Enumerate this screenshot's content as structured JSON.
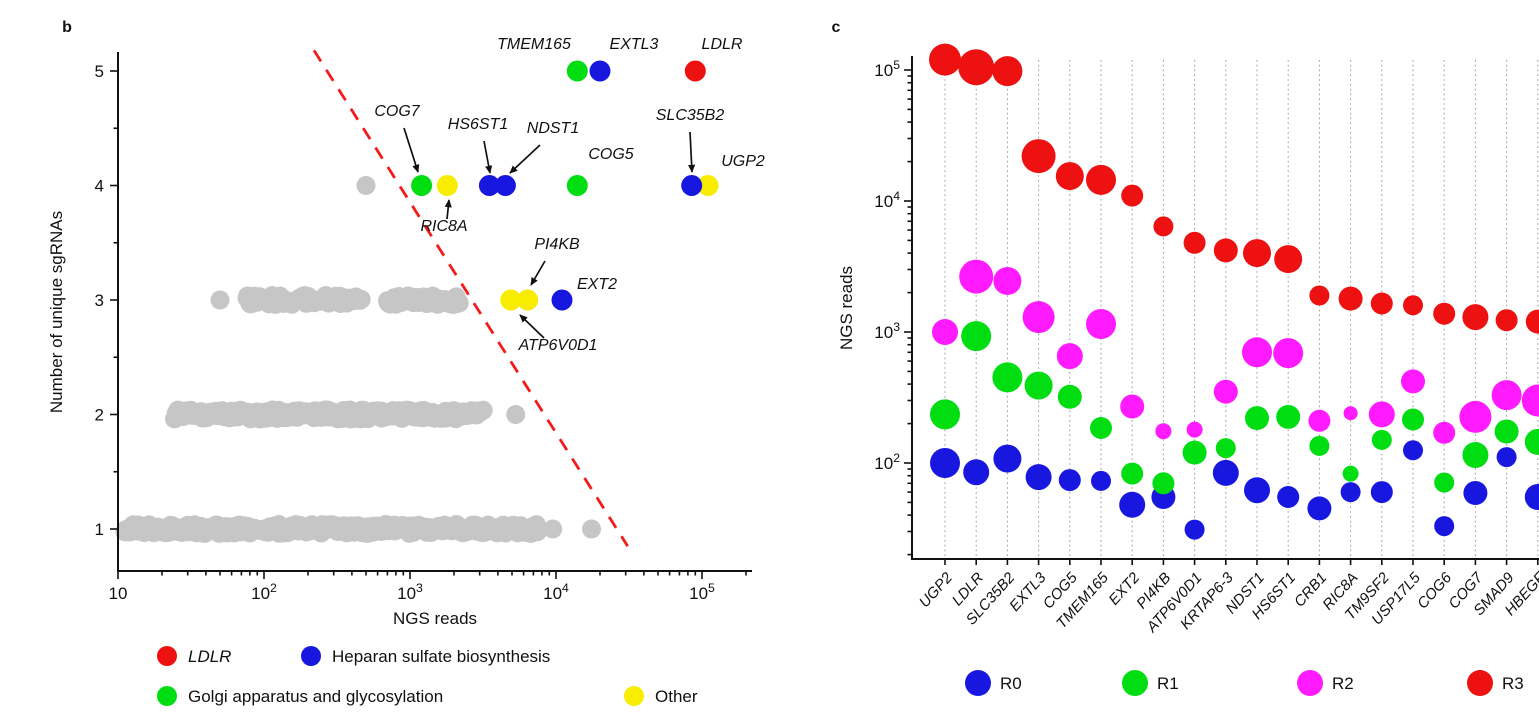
{
  "colors": {
    "red": "#ee1111",
    "blue": "#1717e0",
    "green": "#00dd11",
    "magenta": "#ff1aff",
    "yellow": "#f8ec00",
    "gray": "#c6c6c6",
    "axis": "#111111",
    "gridline": "#9a9a9a",
    "dash_red": "#f21b1b"
  },
  "chart_data": [
    {
      "id": "panel-b",
      "type": "scatter",
      "panel_label": "b",
      "xlabel": "NGS reads",
      "ylabel": "Number of unique sgRNAs",
      "x_scale": "log",
      "x_ticks": [
        10,
        100,
        1000,
        10000,
        100000
      ],
      "x_range": [
        10,
        220000
      ],
      "y_ticks": [
        1,
        2,
        3,
        4,
        5
      ],
      "y_range": [
        0.55,
        5.5
      ],
      "grid": false,
      "legend_position": "bottom",
      "legend": [
        {
          "label": "LDLR",
          "color_key": "red",
          "italic": true
        },
        {
          "label": "Heparan sulfate biosynthesis",
          "color_key": "blue",
          "italic": false
        },
        {
          "label": "Golgi apparatus and glycosylation",
          "color_key": "green",
          "italic": false
        },
        {
          "label": "Other",
          "color_key": "yellow",
          "italic": false
        }
      ],
      "gray_bands": [
        {
          "y": 1,
          "x_from": 11,
          "x_to": 7500,
          "count": 280
        },
        {
          "y": 2,
          "x_from": 24,
          "x_to": 3100,
          "count": 190
        },
        {
          "y": 3,
          "x_from": 75,
          "x_to": 460,
          "count": 55
        },
        {
          "y": 3,
          "x_from": 700,
          "x_to": 2150,
          "count": 38
        }
      ],
      "gray_points": [
        {
          "x": 50,
          "y": 3
        },
        {
          "x": 500,
          "y": 4
        },
        {
          "x": 5300,
          "y": 2
        },
        {
          "x": 9500,
          "y": 1
        },
        {
          "x": 17500,
          "y": 1
        }
      ],
      "highlighted_points": [
        {
          "gene": "TMEM165",
          "x": 14000,
          "y": 5,
          "category": "green"
        },
        {
          "gene": "EXTL3",
          "x": 20000,
          "y": 5,
          "category": "blue"
        },
        {
          "gene": "LDLR",
          "x": 90000,
          "y": 5,
          "category": "red"
        },
        {
          "gene": "COG7",
          "x": 1200,
          "y": 4,
          "category": "green"
        },
        {
          "gene": "RIC8A",
          "x": 1800,
          "y": 4,
          "category": "yellow"
        },
        {
          "gene": "HS6ST1",
          "x": 3500,
          "y": 4,
          "category": "blue"
        },
        {
          "gene": "NDST1",
          "x": 4500,
          "y": 4,
          "category": "blue"
        },
        {
          "gene": "COG5",
          "x": 14000,
          "y": 4,
          "category": "green"
        },
        {
          "gene": "UGP2",
          "x": 110000,
          "y": 4,
          "category": "yellow"
        },
        {
          "gene": "SLC35B2",
          "x": 85000,
          "y": 4,
          "category": "blue"
        },
        {
          "gene": "ATP6V0D1",
          "x": 4900,
          "y": 3,
          "category": "yellow"
        },
        {
          "gene": "PI4KB",
          "x": 6400,
          "y": 3,
          "category": "yellow"
        },
        {
          "gene": "EXT2",
          "x": 11000,
          "y": 3,
          "category": "blue"
        }
      ],
      "threshold_line": {
        "x1": 220,
        "y1": 5.18,
        "x2": 31000,
        "y2": 0.85,
        "style": "dashed"
      },
      "annotations": [
        {
          "text": "TMEM165",
          "tx": 494,
          "ty": 33
        },
        {
          "text": "EXTL3",
          "tx": 594,
          "ty": 33
        },
        {
          "text": "LDLR",
          "tx": 682,
          "ty": 33
        },
        {
          "text": "COG7",
          "tx": 357,
          "ty": 100,
          "arrow": [
            364,
            112,
            378,
            156
          ]
        },
        {
          "text": "HS6ST1",
          "tx": 438,
          "ty": 113,
          "arrow": [
            444,
            125,
            450,
            157
          ]
        },
        {
          "text": "NDST1",
          "tx": 513,
          "ty": 117,
          "arrow": [
            500,
            129,
            470,
            157
          ]
        },
        {
          "text": "COG5",
          "tx": 571,
          "ty": 143
        },
        {
          "text": "SLC35B2",
          "tx": 650,
          "ty": 104,
          "arrow": [
            650,
            116,
            652,
            156
          ]
        },
        {
          "text": "UGP2",
          "tx": 703,
          "ty": 150
        },
        {
          "text": "RIC8A",
          "tx": 404,
          "ty": 215,
          "arrow": [
            407,
            203,
            409,
            184
          ]
        },
        {
          "text": "PI4KB",
          "tx": 517,
          "ty": 233,
          "arrow": [
            505,
            245,
            491,
            269
          ]
        },
        {
          "text": "EXT2",
          "tx": 557,
          "ty": 273
        },
        {
          "text": "ATP6V0D1",
          "tx": 518,
          "ty": 334,
          "arrow": [
            504,
            322,
            480,
            299
          ]
        }
      ]
    },
    {
      "id": "panel-c",
      "type": "bubble",
      "panel_label": "c",
      "ylabel": "NGS reads",
      "y_scale": "log",
      "y_ticks": [
        100,
        1000,
        10000,
        100000
      ],
      "y_range": [
        19,
        117000
      ],
      "grid": "vertical-dotted",
      "legend_position": "bottom",
      "categories": [
        "UGP2",
        "LDLR",
        "SLC35B2",
        "EXTL3",
        "COG5",
        "TMEM165",
        "EXT2",
        "PI4KB",
        "ATP6V0D1",
        "KRTAP6-3",
        "NDST1",
        "HS6ST1",
        "CRB1",
        "RIC8A",
        "TM9SF2",
        "USP17L5",
        "COG6",
        "COG7",
        "SMAD9",
        "HBEGF"
      ],
      "series": [
        {
          "name": "R0",
          "color_key": "blue",
          "values": [
            100,
            85,
            108,
            78,
            74,
            73,
            48,
            55,
            31,
            84,
            62,
            55,
            45,
            60,
            60,
            125,
            33,
            59,
            111,
            55
          ],
          "radii": [
            15,
            13,
            14,
            13,
            11,
            10,
            13,
            12,
            10,
            13,
            13,
            11,
            12,
            10,
            11,
            10,
            10,
            12,
            10,
            13
          ]
        },
        {
          "name": "R1",
          "color_key": "green",
          "values": [
            235,
            930,
            450,
            390,
            320,
            185,
            83,
            70,
            120,
            130,
            220,
            225,
            135,
            83,
            150,
            215,
            71,
            115,
            174,
            145
          ],
          "radii": [
            15,
            15,
            15,
            14,
            12,
            11,
            11,
            11,
            12,
            10,
            12,
            12,
            10,
            8,
            10,
            11,
            10,
            13,
            12,
            13
          ]
        },
        {
          "name": "R2",
          "color_key": "magenta",
          "values": [
            1000,
            2650,
            2450,
            1300,
            655,
            1150,
            270,
            175,
            180,
            350,
            700,
            690,
            210,
            240,
            235,
            420,
            170,
            225,
            330,
            300
          ],
          "radii": [
            13,
            17,
            14,
            16,
            13,
            15,
            12,
            8,
            8,
            12,
            15,
            15,
            11,
            7,
            13,
            12,
            11,
            16,
            15,
            16
          ]
        },
        {
          "name": "R3",
          "color_key": "red",
          "values": [
            120000,
            105000,
            98000,
            22000,
            15500,
            14500,
            11000,
            6400,
            4800,
            4200,
            4000,
            3600,
            1900,
            1800,
            1650,
            1600,
            1380,
            1300,
            1230,
            1200
          ],
          "radii": [
            16,
            18,
            15,
            17,
            14,
            15,
            11,
            10,
            11,
            12,
            14,
            14,
            10,
            12,
            11,
            10,
            11,
            13,
            11,
            12
          ]
        }
      ]
    }
  ]
}
